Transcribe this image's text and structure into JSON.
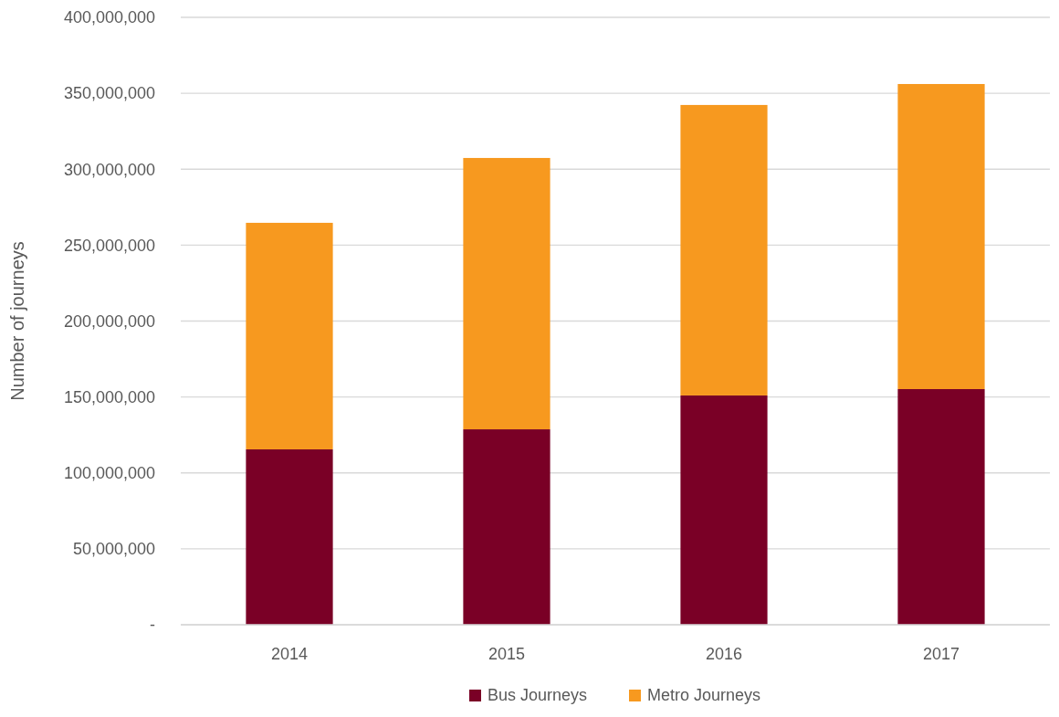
{
  "chart_data": {
    "type": "bar",
    "stacked": true,
    "categories": [
      "2014",
      "2015",
      "2016",
      "2017"
    ],
    "ylabel": "Number of journeys",
    "ylim": [
      0,
      400000000
    ],
    "yticks": [
      {
        "value": 0,
        "label": "-"
      },
      {
        "value": 50000000,
        "label": "50,000,000"
      },
      {
        "value": 100000000,
        "label": "100,000,000"
      },
      {
        "value": 150000000,
        "label": "150,000,000"
      },
      {
        "value": 200000000,
        "label": "200,000,000"
      },
      {
        "value": 250000000,
        "label": "250,000,000"
      },
      {
        "value": 300000000,
        "label": "300,000,000"
      },
      {
        "value": 350000000,
        "label": "350,000,000"
      },
      {
        "value": 400000000,
        "label": "400,000,000"
      }
    ],
    "grid": "y",
    "legend": "bottom",
    "series": [
      {
        "name": "Bus Journeys",
        "color": "#7a0026",
        "values": [
          115500000,
          128700000,
          151000000,
          155200000
        ]
      },
      {
        "name": "Metro Journeys",
        "color": "#f7991f",
        "values": [
          149200000,
          178700000,
          191300000,
          200900000
        ]
      }
    ]
  }
}
